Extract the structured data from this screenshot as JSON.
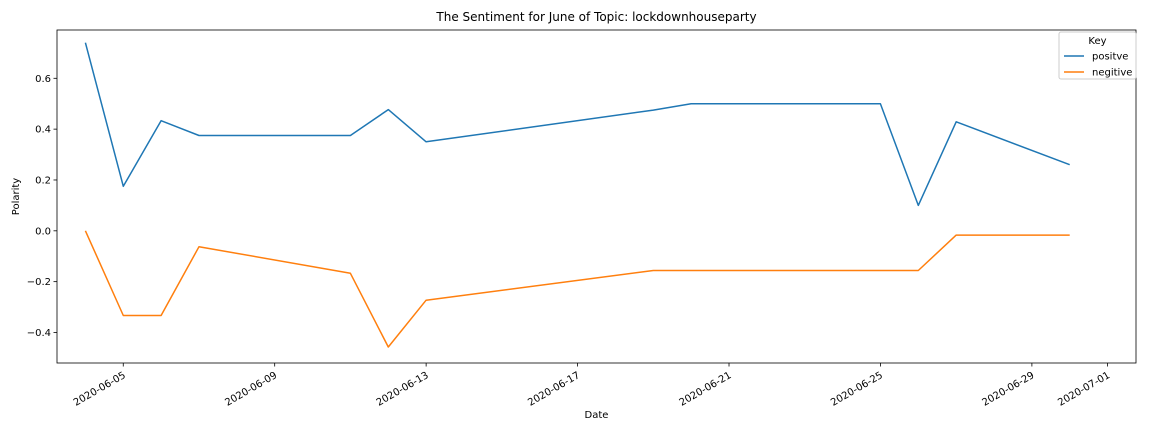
{
  "chart_data": {
    "type": "line",
    "title": "The Sentiment for June of Topic: lockdownhouseparty",
    "xlabel": "Date",
    "ylabel": "Polarity",
    "x": [
      "2020-06-04",
      "2020-06-05",
      "2020-06-06",
      "2020-06-07",
      "2020-06-11",
      "2020-06-12",
      "2020-06-13",
      "2020-06-19",
      "2020-06-20",
      "2020-06-25",
      "2020-06-26",
      "2020-06-27",
      "2020-06-30"
    ],
    "series": [
      {
        "name": "positve",
        "color": "#1f77b4",
        "values": [
          0.74,
          0.175,
          0.433,
          0.375,
          0.375,
          0.477,
          0.35,
          0.475,
          0.5,
          0.5,
          0.1,
          0.429,
          0.26
        ]
      },
      {
        "name": "negitive",
        "color": "#ff7f0e",
        "values": [
          0.0,
          -0.333,
          -0.333,
          -0.0625,
          -0.167,
          -0.457,
          -0.273,
          -0.156,
          -0.156,
          -0.156,
          -0.156,
          -0.0167,
          -0.0167
        ]
      }
    ],
    "xlim": [
      "2020-06-03T06:00",
      "2020-07-01T18:00"
    ],
    "ylim": [
      -0.52,
      0.79
    ],
    "xticks": [
      "2020-06-05",
      "2020-06-09",
      "2020-06-13",
      "2020-06-17",
      "2020-06-21",
      "2020-06-25",
      "2020-06-29",
      "2020-07-01"
    ],
    "yticks": [
      0.6,
      0.4,
      0.2,
      0.0,
      -0.2,
      -0.4
    ],
    "ytick_labels": [
      "0.6",
      "0.4",
      "0.2",
      "0.0",
      "−0.2",
      "−0.4"
    ],
    "legend": {
      "title": "Key",
      "position": "top-right"
    },
    "grid": false
  }
}
